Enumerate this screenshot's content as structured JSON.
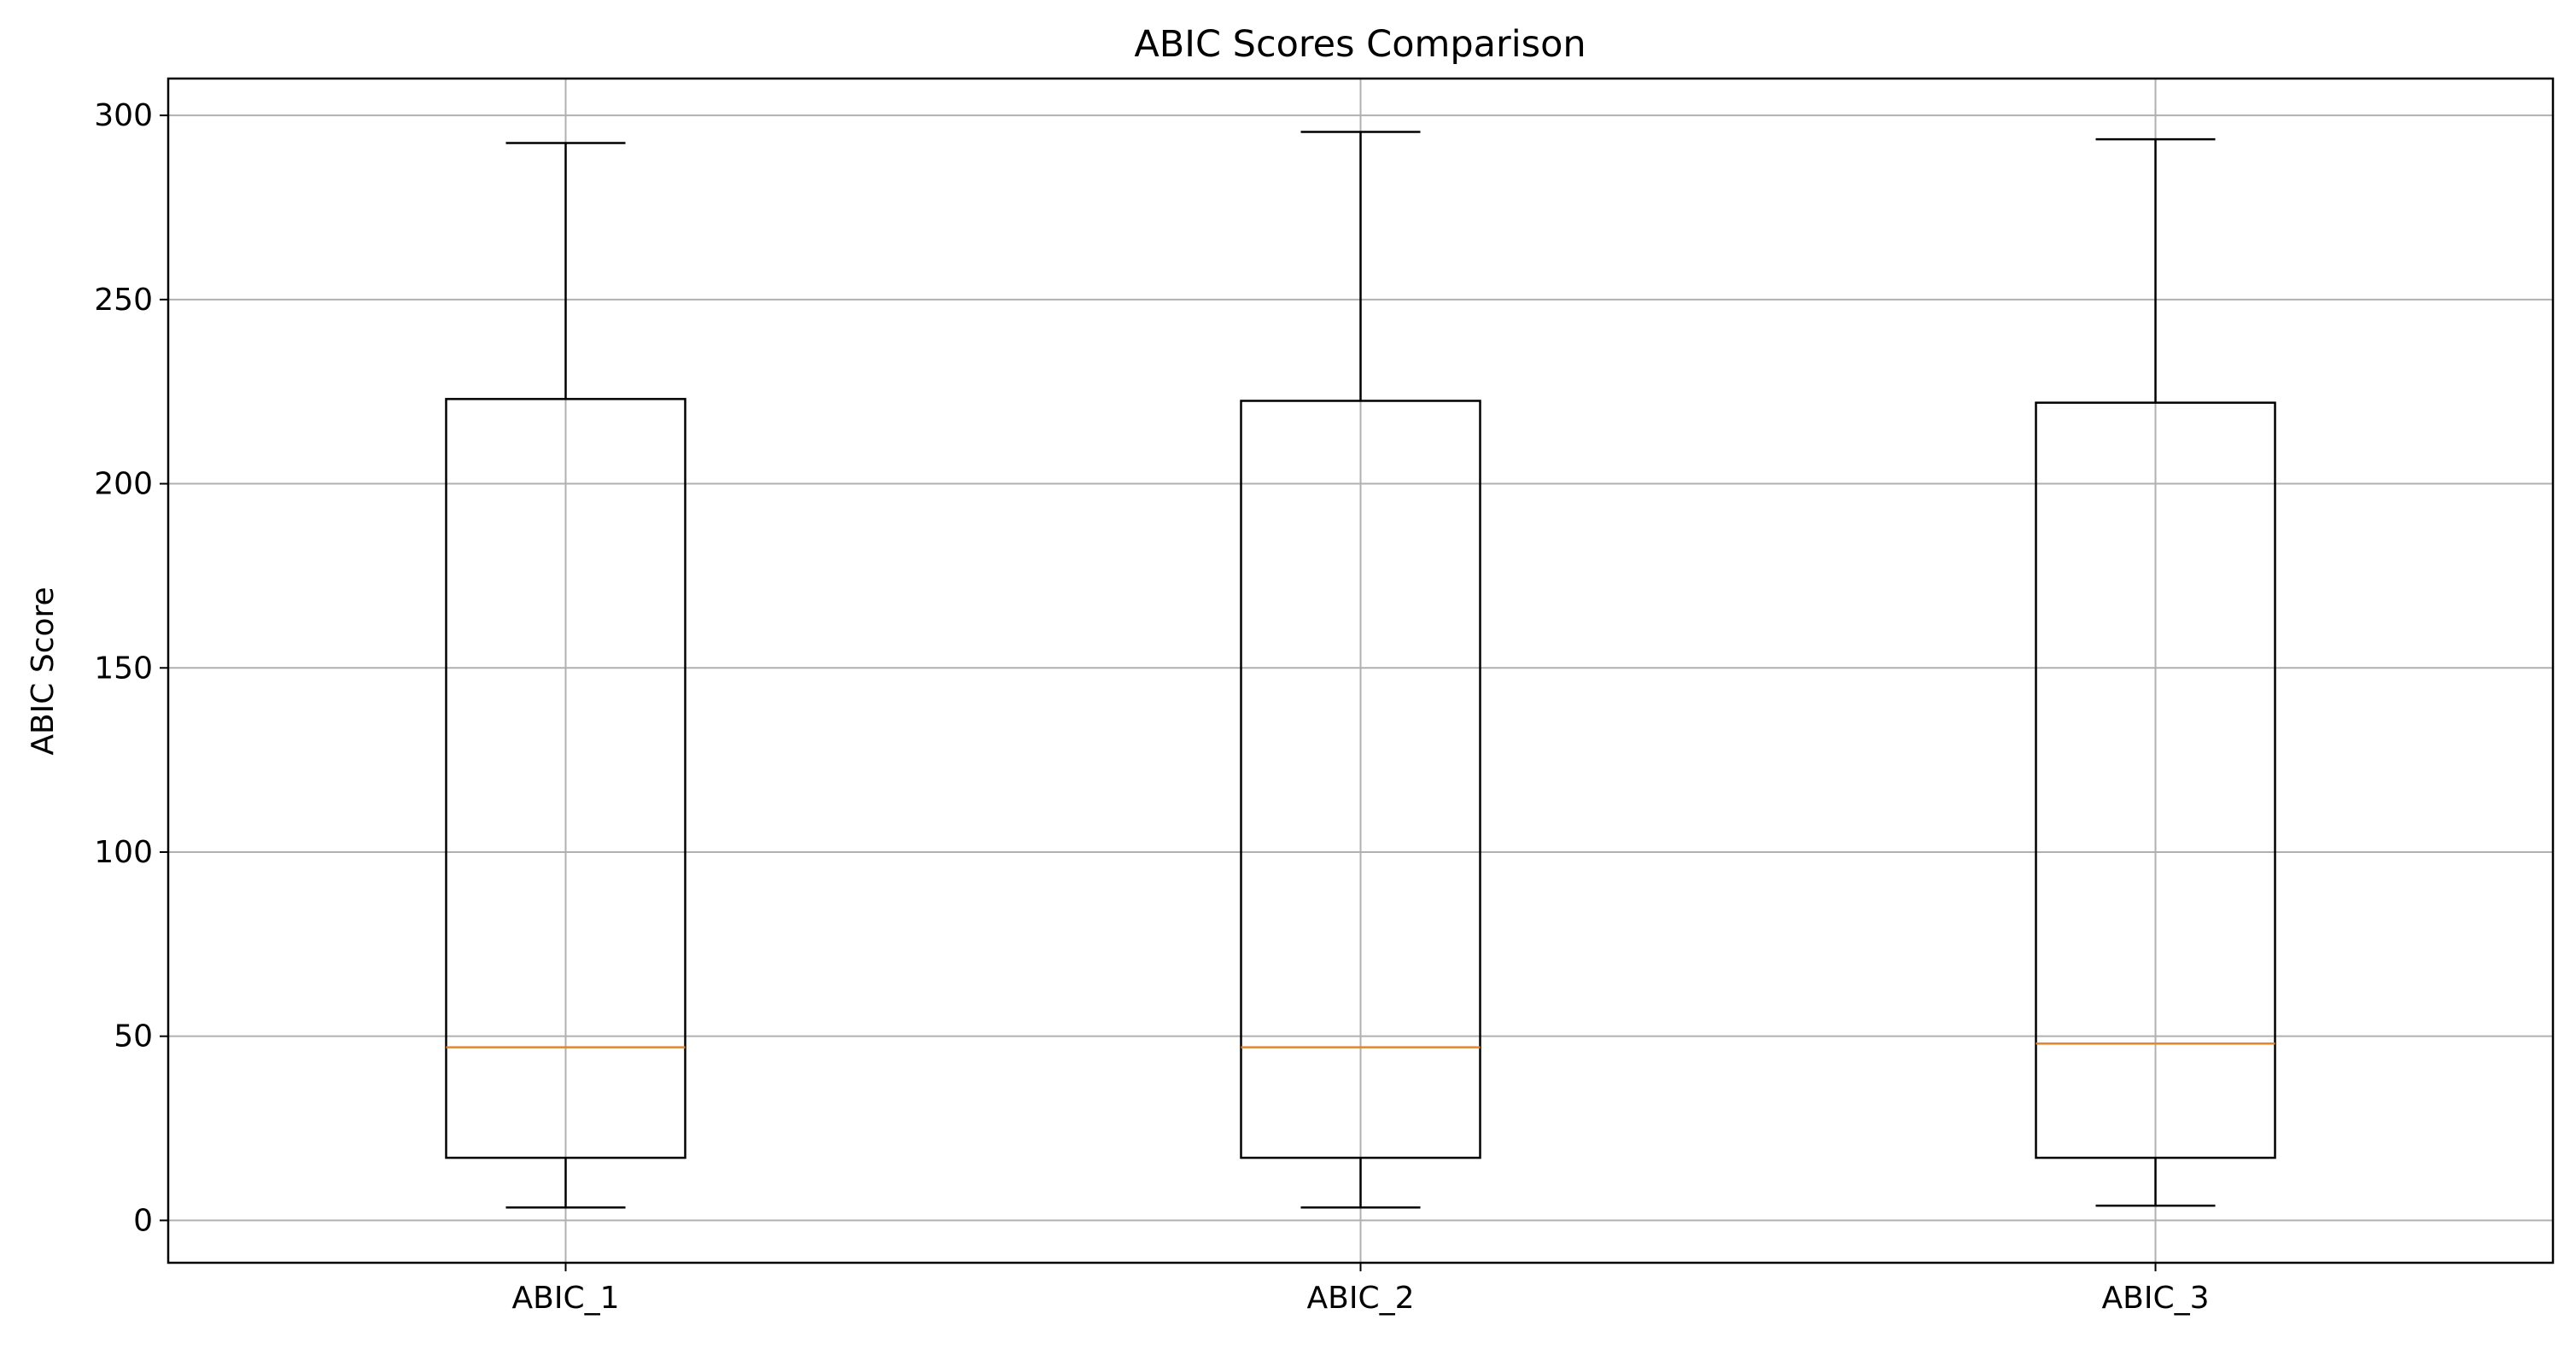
{
  "chart_data": {
    "type": "box",
    "title": "ABIC Scores Comparison",
    "xlabel": "",
    "ylabel": "ABIC Score",
    "categories": [
      "ABIC_1",
      "ABIC_2",
      "ABIC_3"
    ],
    "boxes": [
      {
        "name": "ABIC_1",
        "whisker_low": 3.5,
        "q1": 17,
        "median": 47,
        "q3": 223,
        "whisker_high": 292.5
      },
      {
        "name": "ABIC_2",
        "whisker_low": 3.5,
        "q1": 17,
        "median": 47,
        "q3": 222.5,
        "whisker_high": 295.5
      },
      {
        "name": "ABIC_3",
        "whisker_low": 4,
        "q1": 17,
        "median": 48,
        "q3": 222,
        "whisker_high": 293.5
      }
    ],
    "ylim": [
      -11.5,
      310
    ],
    "yticks": [
      0,
      50,
      100,
      150,
      200,
      250,
      300
    ],
    "grid": true,
    "colors": {
      "box": "#000000",
      "median": "#ff7f0e",
      "grid": "#b0b0b0"
    }
  }
}
